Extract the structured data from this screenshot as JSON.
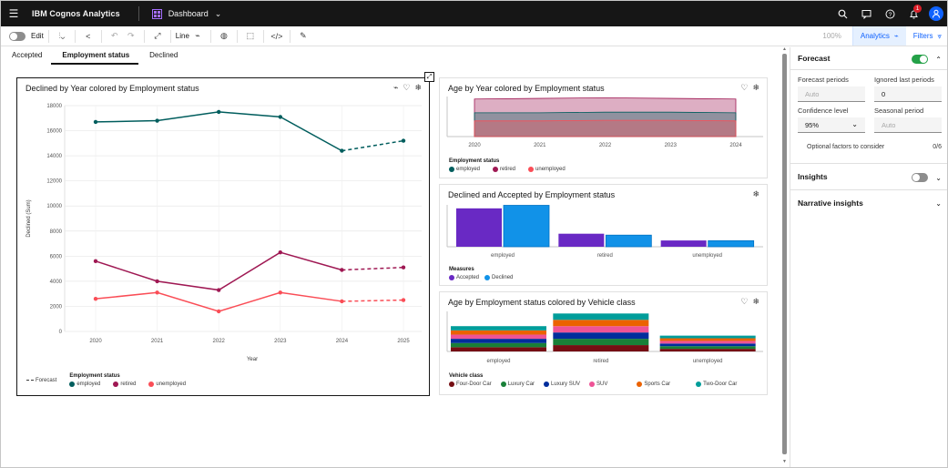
{
  "app": {
    "brand": "IBM Cognos Analytics",
    "dashboard_label": "Dashboard",
    "notification_count": "1"
  },
  "toolbar": {
    "edit_label": "Edit",
    "line_label": "Line",
    "zoom": "100%",
    "analytics_label": "Analytics",
    "filters_label": "Filters"
  },
  "tabs": [
    {
      "label": "Accepted"
    },
    {
      "label": "Employment status"
    },
    {
      "label": "Declined"
    }
  ],
  "colors": {
    "employed": "#005d5d",
    "retired": "#9f1853",
    "unemployed": "#fa4d56",
    "accepted": "#6929c4",
    "declined": "#1192e8"
  },
  "chart_data": [
    {
      "type": "line",
      "title": "Declined by Year colored by Employment status",
      "xlabel": "Year",
      "ylabel": "Declined (Sum)",
      "x": [
        "2020",
        "2021",
        "2022",
        "2023",
        "2024",
        "2025"
      ],
      "ylim": [
        0,
        18000
      ],
      "yticks": [
        "0",
        "2000",
        "4000",
        "6000",
        "8000",
        "10000",
        "12000",
        "14000",
        "16000",
        "18000"
      ],
      "legend_title": "Employment status",
      "forecast_label": "Forecast",
      "series": [
        {
          "name": "employed",
          "values": [
            16700,
            16800,
            17500,
            17100,
            14400,
            15200
          ]
        },
        {
          "name": "retired",
          "values": [
            5600,
            4000,
            3300,
            6300,
            4900,
            5100
          ]
        },
        {
          "name": "unemployed",
          "values": [
            2600,
            3100,
            1600,
            3100,
            2400,
            2500
          ]
        }
      ]
    },
    {
      "type": "area",
      "title": "Age by Year colored by Employment status",
      "x": [
        "2020",
        "2021",
        "2022",
        "2023",
        "2024"
      ],
      "legend_title": "Employment status",
      "series": [
        {
          "name": "employed",
          "values": [
            38,
            38,
            39,
            39,
            38
          ]
        },
        {
          "name": "retired",
          "values": [
            60,
            61,
            62,
            61,
            60
          ]
        },
        {
          "name": "unemployed",
          "values": [
            25,
            25,
            26,
            26,
            25
          ]
        }
      ]
    },
    {
      "type": "bar",
      "title": "Declined and Accepted by Employment status",
      "categories": [
        "employed",
        "retired",
        "unemployed"
      ],
      "legend_title": "Measures",
      "series": [
        {
          "name": "Accepted",
          "values": [
            16500,
            5600,
            2700
          ]
        },
        {
          "name": "Declined",
          "values": [
            17800,
            5000,
            2600
          ]
        }
      ]
    },
    {
      "type": "bar",
      "title": "Age by Employment status colored by Vehicle class",
      "categories": [
        "employed",
        "retired",
        "unemployed"
      ],
      "legend_title": "Vehicle class",
      "series": [
        {
          "name": "Four-Door Car",
          "values": [
            40,
            60,
            25
          ]
        },
        {
          "name": "Luxury Car",
          "values": [
            40,
            60,
            25
          ]
        },
        {
          "name": "Luxury SUV",
          "values": [
            40,
            60,
            25
          ]
        },
        {
          "name": "SUV",
          "values": [
            40,
            60,
            25
          ]
        },
        {
          "name": "Sports Car",
          "values": [
            40,
            60,
            25
          ]
        },
        {
          "name": "Two-Door Car",
          "values": [
            40,
            60,
            25
          ]
        }
      ]
    }
  ],
  "vehicle_colors": [
    "#750e13",
    "#198038",
    "#002d9c",
    "#ee5396",
    "#eb6200",
    "#009d9a"
  ],
  "panel": {
    "forecast_title": "Forecast",
    "forecast_periods_label": "Forecast periods",
    "forecast_periods_value": "Auto",
    "ignored_label": "Ignored last periods",
    "ignored_value": "0",
    "confidence_label": "Confidence level",
    "confidence_value": "95%",
    "seasonal_label": "Seasonal period",
    "seasonal_value": "Auto",
    "optional_label": "Optional factors to consider",
    "optional_count": "0/6",
    "insights_title": "Insights",
    "narrative_title": "Narrative insights"
  }
}
